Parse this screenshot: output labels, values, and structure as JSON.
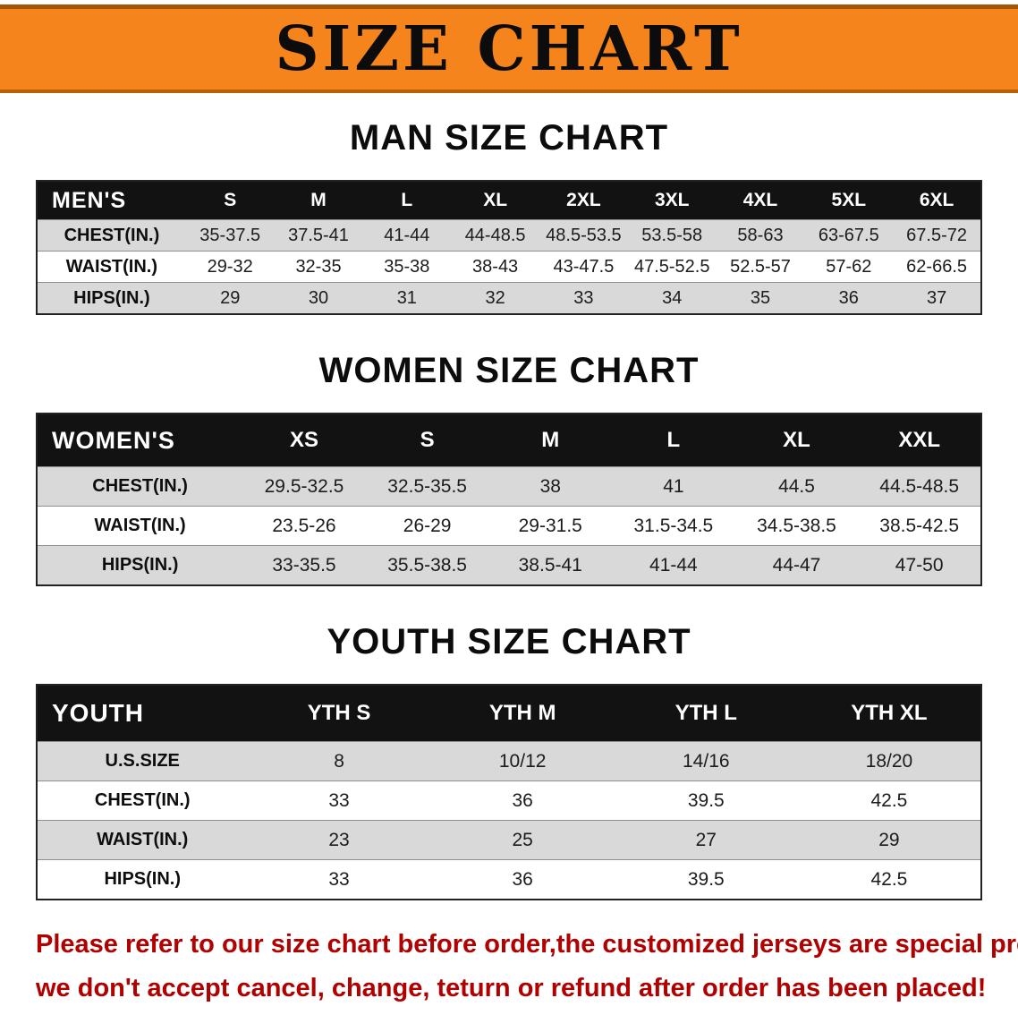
{
  "banner": {
    "title": "SIZE CHART",
    "bg_color": "#F6841C"
  },
  "men": {
    "heading": "MAN SIZE CHART",
    "table": {
      "header": [
        "MEN'S",
        "S",
        "M",
        "L",
        "XL",
        "2XL",
        "3XL",
        "4XL",
        "5XL",
        "6XL"
      ],
      "rows": [
        [
          "CHEST(IN.)",
          "35-37.5",
          "37.5-41",
          "41-44",
          "44-48.5",
          "48.5-53.5",
          "53.5-58",
          "58-63",
          "63-67.5",
          "67.5-72"
        ],
        [
          "WAIST(IN.)",
          "29-32",
          "32-35",
          "35-38",
          "38-43",
          "43-47.5",
          "47.5-52.5",
          "52.5-57",
          "57-62",
          "62-66.5"
        ],
        [
          "HIPS(IN.)",
          "29",
          "30",
          "31",
          "32",
          "33",
          "34",
          "35",
          "36",
          "37"
        ]
      ]
    }
  },
  "women": {
    "heading": "WOMEN SIZE CHART",
    "table": {
      "header": [
        "WOMEN'S",
        "XS",
        "S",
        "M",
        "L",
        "XL",
        "XXL"
      ],
      "rows": [
        [
          "CHEST(IN.)",
          "29.5-32.5",
          "32.5-35.5",
          "38",
          "41",
          "44.5",
          "44.5-48.5"
        ],
        [
          "WAIST(IN.)",
          "23.5-26",
          "26-29",
          "29-31.5",
          "31.5-34.5",
          "34.5-38.5",
          "38.5-42.5"
        ],
        [
          "HIPS(IN.)",
          "33-35.5",
          "35.5-38.5",
          "38.5-41",
          "41-44",
          "44-47",
          "47-50"
        ]
      ]
    }
  },
  "youth": {
    "heading": "YOUTH SIZE CHART",
    "table": {
      "header": [
        "YOUTH",
        "YTH S",
        "YTH M",
        "YTH L",
        "YTH XL"
      ],
      "rows": [
        [
          "U.S.SIZE",
          "8",
          "10/12",
          "14/16",
          "18/20"
        ],
        [
          "CHEST(IN.)",
          "33",
          "36",
          "39.5",
          "42.5"
        ],
        [
          "WAIST(IN.)",
          "23",
          "25",
          "27",
          "29"
        ],
        [
          "HIPS(IN.)",
          "33",
          "36",
          "39.5",
          "42.5"
        ]
      ]
    }
  },
  "disclaimer": {
    "line1": "Please refer to our size chart before order,the customized jerseys are special products,",
    "line2": "we don't accept cancel, change, teturn or refund after order has been placed!",
    "color": "#B00000"
  }
}
